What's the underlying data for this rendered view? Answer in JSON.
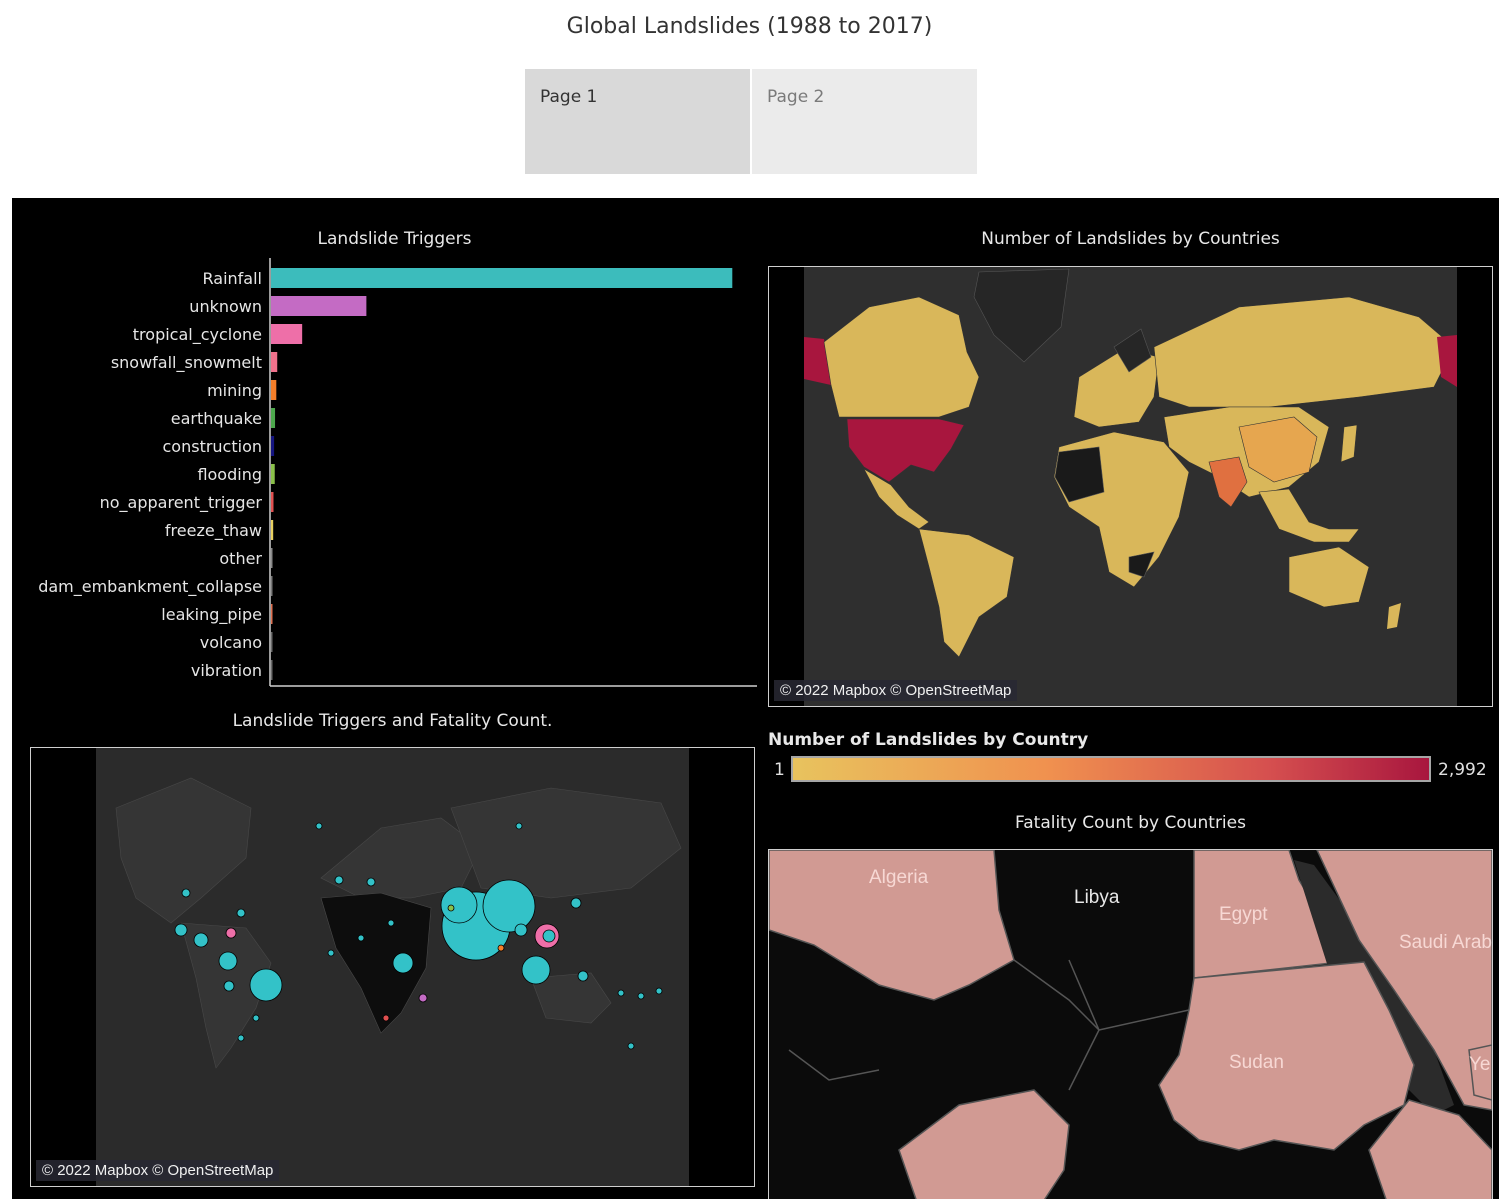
{
  "header": {
    "title": "Global Landslides (1988 to 2017)"
  },
  "tabs": [
    {
      "label": "Page 1"
    },
    {
      "label": "Page 2"
    }
  ],
  "panels": {
    "triggers_title": "Landslide Triggers",
    "country_map_title": "Number of Landslides by Countries",
    "fatality_map_title": "Landslide Triggers and Fatality Count.",
    "fatality_country_title": "Fatality Count by Countries",
    "attribution": "© 2022 Mapbox © OpenStreetMap"
  },
  "legend": {
    "title": "Number of Landslides by Country",
    "min": "1",
    "max": "2,992",
    "colors": [
      "#e8c35e",
      "#f0914f",
      "#d54f4f",
      "#a8163e"
    ]
  },
  "zoom_map": {
    "countries": [
      "Algeria",
      "Libya",
      "Egypt",
      "Saudi Arabi",
      "Sudan",
      "Ye"
    ]
  },
  "chart_data": {
    "type": "bar",
    "orientation": "horizontal",
    "title": "Landslide Triggers",
    "categories": [
      "Rainfall",
      "unknown",
      "tropical_cyclone",
      "snowfall_snowmelt",
      "mining",
      "earthquake",
      "construction",
      "flooding",
      "no_apparent_trigger",
      "freeze_thaw",
      "other",
      "dam_embankment_collapse",
      "leaking_pipe",
      "volcano",
      "vibration"
    ],
    "values": [
      7400,
      1530,
      500,
      100,
      85,
      65,
      50,
      60,
      40,
      35,
      5,
      5,
      5,
      3,
      2
    ],
    "colors": [
      "#3cbcbc",
      "#c46bc4",
      "#ee6fa8",
      "#f0728c",
      "#f57f2a",
      "#4da84d",
      "#151580",
      "#8ac04a",
      "#e05050",
      "#e8d060",
      "#888888",
      "#777777",
      "#e07050",
      "#6a6a6a",
      "#6a6a6a"
    ],
    "xlim": [
      0,
      7700
    ],
    "xlabel": "",
    "ylabel": ""
  }
}
